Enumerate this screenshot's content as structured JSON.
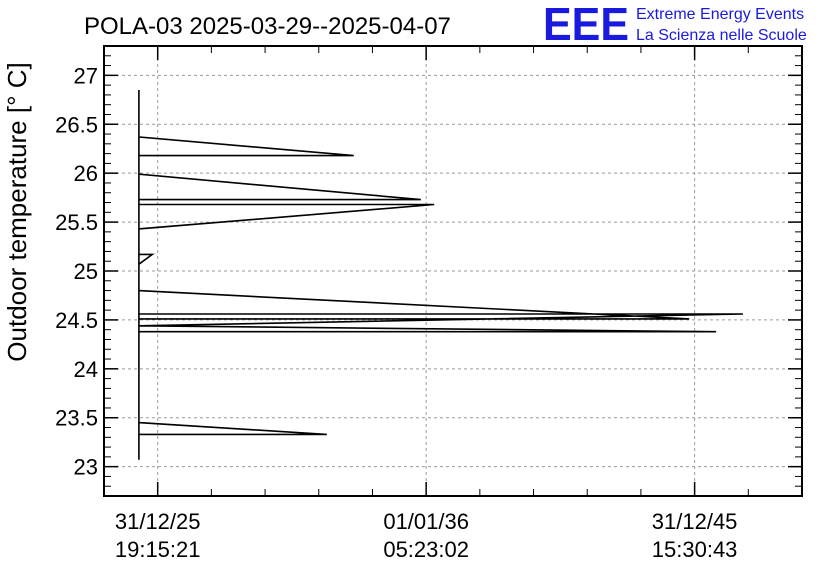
{
  "title": "POLA-03 2025-03-29--2025-04-07",
  "logo": {
    "mark": "EEE",
    "line1": "Extreme Energy Events",
    "line2": "La Scienza nelle Scuole",
    "color": "#1a1adf"
  },
  "chart_data": {
    "type": "line",
    "title": "POLA-03 2025-03-29--2025-04-07",
    "xlabel": "",
    "ylabel": "Outdoor temperature [° C]",
    "ylim": [
      22.7,
      27.3
    ],
    "xlim": [
      -0.2,
      2.4
    ],
    "grid": true,
    "yticks": [
      23,
      23.5,
      24,
      24.5,
      25,
      25.5,
      26,
      26.5,
      27
    ],
    "ytick_labels": [
      "23",
      "23.5",
      "24",
      "24.5",
      "25",
      "25.5",
      "26",
      "26.5",
      "27"
    ],
    "xticks": [
      {
        "x": 0,
        "line1": "31/12/25",
        "line2": "19:15:21"
      },
      {
        "x": 1,
        "line1": "01/01/36",
        "line2": "05:23:02"
      },
      {
        "x": 2,
        "line1": "31/12/45",
        "line2": "15:30:43"
      }
    ],
    "series": [
      {
        "color": "#000000",
        "points": [
          [
            -0.07,
            26.85
          ],
          [
            -0.07,
            23.07
          ],
          [
            -0.07,
            26.37
          ],
          [
            0.73,
            26.18
          ],
          [
            -0.07,
            26.18
          ],
          [
            -0.07,
            25.99
          ],
          [
            0.98,
            25.73
          ],
          [
            -0.07,
            25.73
          ],
          [
            -0.07,
            25.68
          ],
          [
            1.03,
            25.68
          ],
          [
            -0.07,
            25.43
          ],
          [
            -0.07,
            25.17
          ],
          [
            -0.02,
            25.17
          ],
          [
            -0.07,
            25.07
          ],
          [
            -0.07,
            24.8
          ],
          [
            1.98,
            24.51
          ],
          [
            -0.07,
            24.51
          ],
          [
            -0.07,
            24.56
          ],
          [
            2.18,
            24.56
          ],
          [
            -0.07,
            24.44
          ],
          [
            2.08,
            24.38
          ],
          [
            -0.07,
            24.38
          ],
          [
            -0.07,
            23.45
          ],
          [
            0.63,
            23.33
          ],
          [
            -0.07,
            23.33
          ]
        ]
      }
    ]
  }
}
